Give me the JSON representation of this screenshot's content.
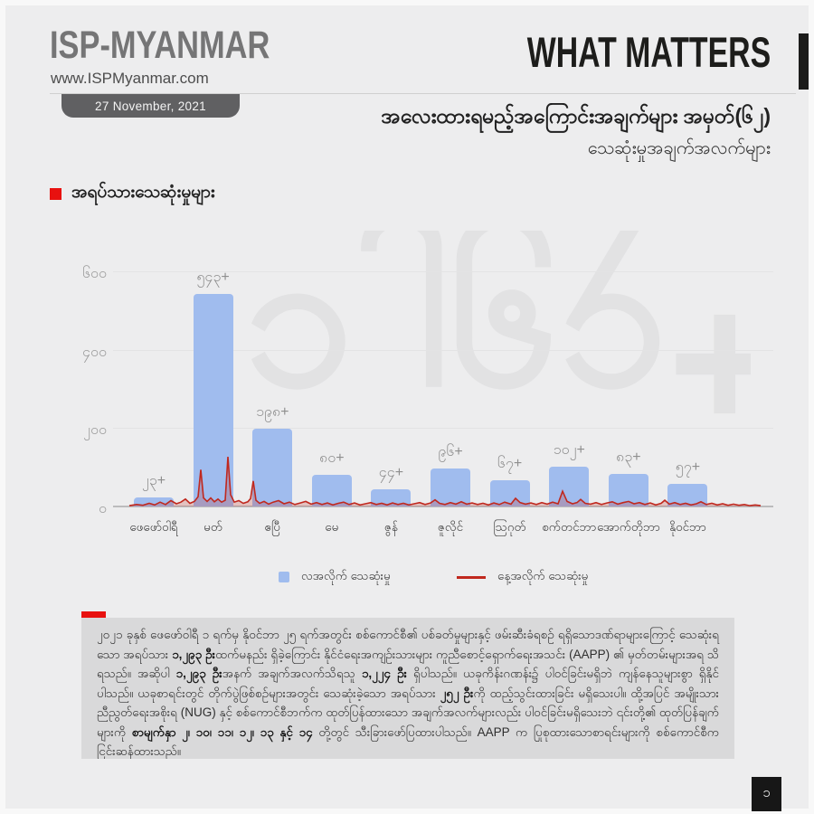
{
  "brand": {
    "logo": "ISP-MYANMAR",
    "website": "www.ISPMyanmar.com",
    "date_badge": "27 November, 2021"
  },
  "header": {
    "title": "WHAT MATTERS",
    "subtitle_line1": "အလေးထားရမည့်အကြောင်းအချက်များ အမှတ်(၆၂)",
    "subtitle_line2": "သေဆုံးမှုအချက်အလက်များ"
  },
  "section": {
    "title": "အရပ်သားသေဆုံးမှုများ"
  },
  "watermark_text": "၁၂၉၃+",
  "chart_data": {
    "type": "bar",
    "title": "အရပ်သားသေဆုံးမှုများ",
    "xlabel": "",
    "ylabel": "",
    "ylim": [
      0,
      600
    ],
    "grid": true,
    "legend_position": "bottom",
    "categories": [
      "ဖေဖော်ဝါရီ",
      "မတ်",
      "ဧပြီ",
      "မေ",
      "ဇွန်",
      "ဇူလိုင်",
      "သြဂုတ်",
      "စက်တင်ဘာ",
      "အောက်တိုဘာ",
      "နိုဝင်ဘာ"
    ],
    "y_ticks": [
      {
        "value": 600,
        "label": "၆၀၀"
      },
      {
        "value": 400,
        "label": "၄၀၀"
      },
      {
        "value": 200,
        "label": "၂၀၀"
      },
      {
        "value": 0,
        "label": "၀"
      }
    ],
    "series": [
      {
        "name": "လအလိုက် သေဆုံးမှု",
        "type": "bar",
        "color": "#a0bcee",
        "values": [
          23,
          543,
          198,
          80,
          44,
          96,
          67,
          102,
          83,
          57
        ],
        "value_labels": [
          "၂၃+",
          "၅၄၃+",
          "၁၉၈+",
          "၈၀+",
          "၄၄+",
          "၉၆+",
          "၆၇+",
          "၁၀၂+",
          "၈၃+",
          "၅၇+"
        ]
      },
      {
        "name": "နေ့အလိုက် သေဆုံးမှု",
        "type": "line",
        "color": "#c0281e",
        "points": [
          [
            18,
            2
          ],
          [
            26,
            5
          ],
          [
            33,
            3
          ],
          [
            40,
            8
          ],
          [
            46,
            4
          ],
          [
            52,
            11
          ],
          [
            58,
            5
          ],
          [
            64,
            15
          ],
          [
            70,
            7
          ],
          [
            75,
            11
          ],
          [
            80,
            19
          ],
          [
            85,
            8
          ],
          [
            90,
            13
          ],
          [
            94,
            25
          ],
          [
            97,
            94
          ],
          [
            100,
            22
          ],
          [
            104,
            13
          ],
          [
            108,
            22
          ],
          [
            112,
            12
          ],
          [
            116,
            19
          ],
          [
            120,
            11
          ],
          [
            124,
            16
          ],
          [
            127,
            127
          ],
          [
            130,
            30
          ],
          [
            134,
            11
          ],
          [
            139,
            15
          ],
          [
            144,
            8
          ],
          [
            149,
            12
          ],
          [
            152,
            20
          ],
          [
            155,
            65
          ],
          [
            158,
            16
          ],
          [
            162,
            8
          ],
          [
            167,
            13
          ],
          [
            172,
            6
          ],
          [
            177,
            11
          ],
          [
            183,
            15
          ],
          [
            189,
            7
          ],
          [
            195,
            11
          ],
          [
            201,
            5
          ],
          [
            207,
            9
          ],
          [
            213,
            13
          ],
          [
            219,
            6
          ],
          [
            225,
            10
          ],
          [
            231,
            5
          ],
          [
            237,
            9
          ],
          [
            243,
            4
          ],
          [
            249,
            8
          ],
          [
            255,
            11
          ],
          [
            261,
            5
          ],
          [
            267,
            9
          ],
          [
            273,
            4
          ],
          [
            279,
            7
          ],
          [
            285,
            10
          ],
          [
            291,
            5
          ],
          [
            297,
            8
          ],
          [
            303,
            4
          ],
          [
            309,
            9
          ],
          [
            315,
            5
          ],
          [
            321,
            8
          ],
          [
            327,
            4
          ],
          [
            333,
            7
          ],
          [
            339,
            10
          ],
          [
            345,
            5
          ],
          [
            351,
            9
          ],
          [
            356,
            17
          ],
          [
            361,
            8
          ],
          [
            367,
            5
          ],
          [
            373,
            10
          ],
          [
            379,
            6
          ],
          [
            385,
            12
          ],
          [
            391,
            6
          ],
          [
            397,
            9
          ],
          [
            403,
            5
          ],
          [
            409,
            8
          ],
          [
            415,
            4
          ],
          [
            421,
            9
          ],
          [
            427,
            5
          ],
          [
            433,
            11
          ],
          [
            440,
            6
          ],
          [
            445,
            21
          ],
          [
            450,
            10
          ],
          [
            456,
            6
          ],
          [
            462,
            9
          ],
          [
            468,
            5
          ],
          [
            474,
            10
          ],
          [
            480,
            6
          ],
          [
            486,
            11
          ],
          [
            492,
            7
          ],
          [
            497,
            39
          ],
          [
            502,
            13
          ],
          [
            508,
            7
          ],
          [
            513,
            10
          ],
          [
            517,
            18
          ],
          [
            522,
            8
          ],
          [
            528,
            6
          ],
          [
            534,
            10
          ],
          [
            540,
            5
          ],
          [
            546,
            9
          ],
          [
            552,
            12
          ],
          [
            558,
            6
          ],
          [
            564,
            10
          ],
          [
            570,
            13
          ],
          [
            576,
            7
          ],
          [
            582,
            10
          ],
          [
            588,
            5
          ],
          [
            594,
            9
          ],
          [
            600,
            4
          ],
          [
            606,
            8
          ],
          [
            610,
            16
          ],
          [
            615,
            6
          ],
          [
            621,
            10
          ],
          [
            627,
            5
          ],
          [
            633,
            8
          ],
          [
            639,
            4
          ],
          [
            645,
            7
          ],
          [
            650,
            12
          ],
          [
            656,
            5
          ],
          [
            662,
            8
          ],
          [
            668,
            4
          ],
          [
            674,
            7
          ],
          [
            680,
            3
          ],
          [
            686,
            6
          ],
          [
            692,
            3
          ],
          [
            698,
            5
          ],
          [
            704,
            2
          ],
          [
            710,
            4
          ],
          [
            716,
            2
          ]
        ]
      }
    ]
  },
  "footer": {
    "segments": [
      {
        "text": "၂၀၂၁ ခုနှစ် ဖေဖော်ဝါရီ ၁ ရက်မှ နိုဝင်ဘာ ၂၅ ရက်အတွင်း စစ်ကောင်စီ၏ ပစ်ခတ်မှုများနှင့် ဖမ်းဆီးခံရစဉ် ရရှိသောဒဏ်ရာများကြောင့် သေဆုံးရသော အရပ်သား ",
        "bold": false
      },
      {
        "text": "၁,၂၉၃ ဦး",
        "bold": true
      },
      {
        "text": "ထက်မနည်း ရှိခဲ့ကြောင်း နိုင်ငံရေးအကျဉ်းသားများ ကူညီစောင့်ရှောက်ရေးအသင်း (AAPP) ၏ မှတ်တမ်းများအရ သိရသည်။ အဆိုပါ ",
        "bold": false
      },
      {
        "text": "၁,၂၉၃ ဦး",
        "bold": true
      },
      {
        "text": "အနက် အချက်အလက်သိရသူ ",
        "bold": false
      },
      {
        "text": "၁,၂၂၄ ဦး",
        "bold": true
      },
      {
        "text": " ရှိပါသည်။ ယခုကိန်းဂဏန်း၌ ပါဝင်ခြင်းမရှိဘဲ ကျန်နေသူများစွာ ရှိနိုင်ပါသည်။ ယခုစာရင်းတွင် တိုက်ပွဲဖြစ်စဉ်များအတွင်း သေဆုံးခဲ့သော အရပ်သား ",
        "bold": false
      },
      {
        "text": "၂၅၂ ဦး",
        "bold": true
      },
      {
        "text": "ကို ထည့်သွင်းထားခြင်း မရှိသေးပါ။ ထို့အပြင် အမျိုးသားညီညွတ်ရေးအစိုးရ (NUG) နှင့် စစ်ကောင်စီဘက်က ထုတ်ပြန်ထားသော အချက်အလက်များလည်း ပါဝင်ခြင်းမရှိသေးဘဲ ၎င်းတို့၏ ထုတ်ပြန်ချက်များကို ",
        "bold": false
      },
      {
        "text": "စာမျက်နှာ ၂၊ ၁၀၊ ၁၁၊ ၁၂၊ ၁၃ နှင့် ၁၄",
        "bold": true
      },
      {
        "text": " တို့တွင် သီးခြားဖော်ပြထားပါသည်။ AAPP က ပြုစုထားသောစာရင်းများကို စစ်ကောင်စီက ငြင်းဆန်ထားသည်။",
        "bold": false
      }
    ]
  },
  "page_number": "၁",
  "colors": {
    "page_bg": "#ededee",
    "accent_red": "#e8110f",
    "bar_blue": "#a0bcee",
    "line_red": "#c0281e",
    "footer_bg": "#d9d9da",
    "title_black": "#1d1d1b",
    "logo_gray": "#757576"
  }
}
